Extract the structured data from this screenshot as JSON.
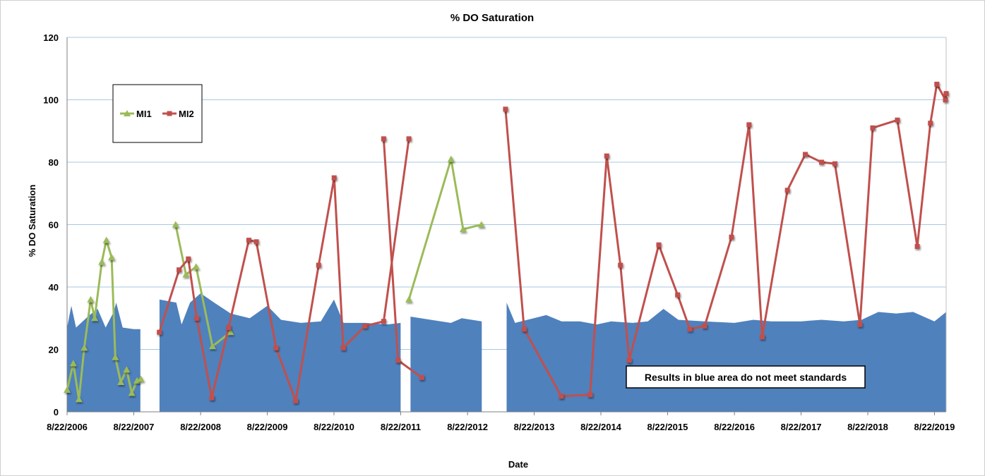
{
  "chart_data": {
    "type": "line",
    "title": "% DO Saturation",
    "xlabel": "Date",
    "ylabel": "% DO Saturation",
    "ylim": [
      0,
      120
    ],
    "yticks": [
      0,
      20,
      40,
      60,
      80,
      100,
      120
    ],
    "xlim": [
      "2006-08-22",
      "2019-10-25"
    ],
    "xticks": [
      "2006-08-22",
      "2007-08-22",
      "2008-08-22",
      "2009-08-22",
      "2010-08-22",
      "2011-08-22",
      "2012-08-22",
      "2013-08-22",
      "2014-08-22",
      "2015-08-22",
      "2016-08-22",
      "2017-08-22",
      "2018-08-22",
      "2019-08-22"
    ],
    "xtick_labels": [
      "8/22/2006",
      "8/22/2007",
      "8/22/2008",
      "8/22/2009",
      "8/22/2010",
      "8/22/2011",
      "8/22/2012",
      "8/22/2013",
      "8/22/2014",
      "8/22/2015",
      "8/22/2016",
      "8/22/2017",
      "8/22/2018",
      "8/22/2019"
    ],
    "grid": "horizontal",
    "legend": "top-left",
    "annotation": "Results in blue area do not meet standards",
    "colors": {
      "standard_area": "#4f81bd",
      "MI1": "#9bbb59",
      "MI2": "#c0504d",
      "grid": "#a6c9e2"
    },
    "standard_area": {
      "name": "Standard",
      "segments": [
        {
          "x": [
            "2006-08-22",
            "2006-09-14",
            "2006-10-10",
            "2006-12-23",
            "2007-02-05",
            "2007-03-21",
            "2007-05-04",
            "2007-05-18",
            "2007-06-22",
            "2007-08-22",
            "2007-09-27"
          ],
          "y": [
            27,
            34,
            27,
            31,
            33,
            27,
            32,
            35,
            27,
            26.5,
            26.5
          ]
        },
        {
          "x": [
            "2008-01-10",
            "2008-04-11",
            "2008-05-10",
            "2008-06-25",
            "2008-08-22",
            "2008-11-04",
            "2009-02-03",
            "2009-05-18",
            "2009-08-22",
            "2009-11-05",
            "2010-02-21",
            "2010-06-11",
            "2010-08-22",
            "2010-10-13",
            "2011-02-10",
            "2011-06-11",
            "2011-08-22"
          ],
          "y": [
            36,
            35,
            28,
            35,
            38,
            35,
            31.5,
            30,
            34,
            29.5,
            28.5,
            29,
            36,
            28.5,
            28.5,
            28,
            28.5
          ]
        },
        {
          "x": [
            "2011-10-15",
            "2012-02-03",
            "2012-05-23",
            "2012-07-21",
            "2012-11-08"
          ],
          "y": [
            30.5,
            29.5,
            28.5,
            30,
            29
          ]
        },
        {
          "x": [
            "2013-03-24",
            "2013-05-09",
            "2013-10-27",
            "2014-01-19",
            "2014-04-29",
            "2014-07-31",
            "2014-10-17",
            "2015-02-12",
            "2015-05-06",
            "2015-07-31",
            "2015-10-20",
            "2016-03-12",
            "2016-08-22",
            "2016-12-04",
            "2017-03-12",
            "2017-08-22",
            "2017-12-12",
            "2018-04-12",
            "2018-07-19",
            "2018-10-19",
            "2019-01-25",
            "2019-04-27",
            "2019-08-22",
            "2019-10-25"
          ],
          "y": [
            35,
            28.5,
            31,
            29,
            29,
            28,
            29,
            28.5,
            29,
            33,
            29.5,
            29,
            28.5,
            29.5,
            29,
            29,
            29.5,
            29,
            29.5,
            32,
            31.5,
            32,
            29,
            32
          ]
        }
      ]
    },
    "series": [
      {
        "name": "MI1",
        "marker": "triangle",
        "segments": [
          {
            "x": [
              "2006-08-22",
              "2006-09-25",
              "2006-10-26",
              "2006-11-24",
              "2006-12-29",
              "2007-01-20",
              "2007-02-28",
              "2007-03-25",
              "2007-04-23",
              "2007-05-13",
              "2007-06-12",
              "2007-07-14",
              "2007-08-11",
              "2007-09-09",
              "2007-09-30"
            ],
            "y": [
              7,
              15.5,
              4,
              20.5,
              36,
              30,
              48,
              55,
              49.5,
              17.5,
              9.5,
              13.5,
              6,
              10,
              10.5
            ]
          },
          {
            "x": [
              "2008-04-07",
              "2008-06-03",
              "2008-07-28",
              "2008-10-26",
              "2009-02-01"
            ],
            "y": [
              60,
              44,
              46.5,
              21,
              25.5
            ]
          },
          {
            "x": [
              "2011-10-06",
              "2012-05-24",
              "2012-07-29",
              "2012-11-06"
            ],
            "y": [
              36,
              81,
              58.5,
              60
            ]
          }
        ]
      },
      {
        "name": "MI2",
        "marker": "square",
        "segments": [
          {
            "x": [
              "2008-01-09",
              "2008-04-26",
              "2008-06-16",
              "2008-08-01",
              "2008-10-22",
              "2009-01-22",
              "2009-05-13",
              "2009-06-23",
              "2009-10-09",
              "2010-01-24",
              "2010-05-30",
              "2010-08-23",
              "2010-10-12",
              "2011-02-08",
              "2011-05-21",
              "2011-10-06"
            ],
            "y": [
              25.5,
              45.5,
              49,
              30,
              4.5,
              27,
              55,
              54.5,
              20.5,
              3.5,
              47,
              75,
              20.5,
              27.5,
              29,
              87.5
            ]
          },
          {
            "x": [
              "2011-05-21",
              "2011-08-08",
              "2011-12-15"
            ],
            "y": [
              87.5,
              16.5,
              11
            ]
          },
          {
            "x": [
              "2013-03-18",
              "2013-06-28",
              "2014-01-17",
              "2014-06-24",
              "2014-09-23",
              "2014-12-07",
              "2015-01-24",
              "2015-07-05",
              "2015-10-16",
              "2015-12-22",
              "2016-03-12",
              "2016-08-06",
              "2016-11-10",
              "2017-01-21",
              "2017-06-08",
              "2017-09-14",
              "2017-12-12",
              "2018-02-23",
              "2018-07-10",
              "2018-09-18",
              "2019-01-31",
              "2019-05-20",
              "2019-07-31",
              "2019-09-04",
              "2019-10-21",
              "2019-10-25"
            ],
            "y": [
              97,
              26.5,
              5,
              5.5,
              82,
              47,
              16.5,
              53.5,
              37.5,
              26.5,
              27.5,
              56,
              92,
              24,
              71,
              82.5,
              80,
              79.5,
              28,
              91,
              93.5,
              53,
              92.5,
              105,
              100,
              102
            ]
          }
        ]
      }
    ]
  }
}
